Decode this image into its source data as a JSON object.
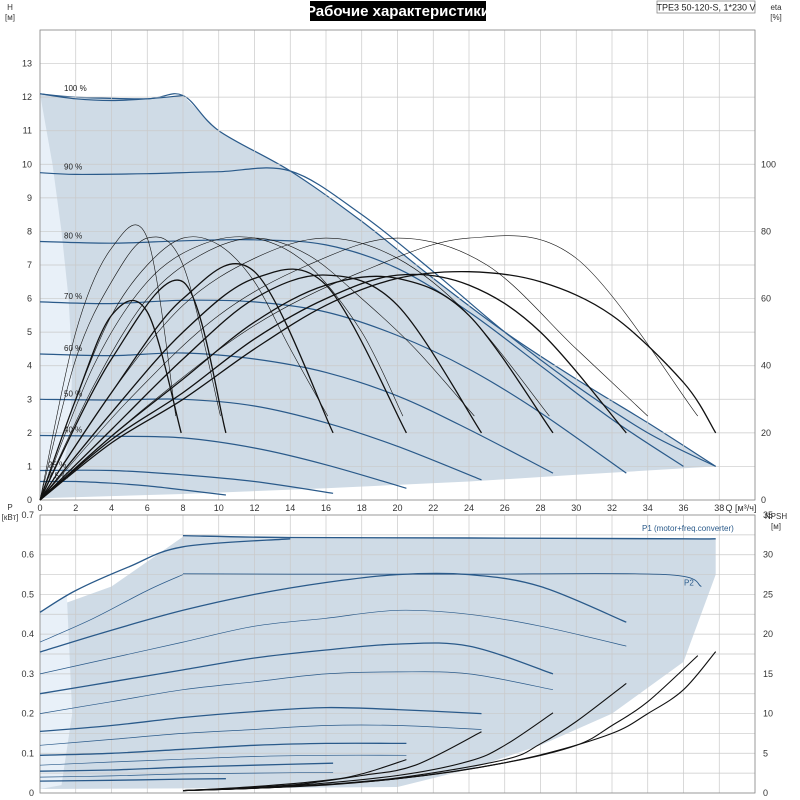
{
  "chart_data": [
    {
      "type": "line",
      "title": "Рабочие характеристики",
      "model": "TPE3 50-120-S, 1*230 V",
      "xlabel": "Q [м³/ч]",
      "ylabel": "H\n[м]",
      "y2label": "eta\n[%]",
      "xlim": [
        0,
        40
      ],
      "ylim": [
        0,
        14
      ],
      "y2lim": [
        0,
        140
      ],
      "x_ticks": [
        0,
        2,
        4,
        6,
        8,
        10,
        12,
        14,
        16,
        18,
        20,
        22,
        24,
        26,
        28,
        30,
        32,
        34,
        36,
        38
      ],
      "y_ticks": [
        0,
        1,
        2,
        3,
        4,
        5,
        6,
        7,
        8,
        9,
        10,
        11,
        12,
        13
      ],
      "y2_ticks": [
        0,
        20,
        40,
        60,
        80,
        100
      ],
      "grid": true,
      "operating_area_lower": [
        [
          0,
          0.05
        ],
        [
          8,
          0.18
        ],
        [
          16,
          0.35
        ],
        [
          24,
          0.55
        ],
        [
          30,
          0.75
        ],
        [
          37.8,
          1.0
        ]
      ],
      "operating_area_upper": [
        [
          0,
          12.1
        ],
        [
          2,
          12.0
        ],
        [
          6,
          11.95
        ],
        [
          8,
          12.05
        ],
        [
          10,
          11.0
        ],
        [
          14,
          9.8
        ],
        [
          18,
          8.3
        ],
        [
          22,
          6.6
        ],
        [
          26,
          5.0
        ],
        [
          30,
          3.6
        ],
        [
          34,
          2.3
        ],
        [
          37.8,
          1.0
        ]
      ],
      "min_limit_curve": [
        [
          0,
          12.1
        ],
        [
          0.7,
          10.0
        ],
        [
          1.2,
          8.0
        ],
        [
          1.6,
          6.0
        ],
        [
          1.8,
          4.0
        ],
        [
          1.7,
          2.0
        ],
        [
          1.3,
          1.0
        ],
        [
          0.8,
          0.4
        ],
        [
          0,
          0.05
        ]
      ],
      "series": [
        {
          "name": "100 %",
          "x": [
            0,
            2,
            4,
            6,
            8
          ],
          "y": [
            12.1,
            11.95,
            11.9,
            11.95,
            12.05
          ]
        },
        {
          "name": "90 %",
          "x": [
            0,
            2,
            6,
            10,
            14,
            18,
            22,
            26,
            30,
            34,
            37.8
          ],
          "y": [
            9.75,
            9.7,
            9.72,
            9.78,
            9.8,
            8.5,
            6.8,
            5.0,
            3.4,
            2.0,
            1.0
          ]
        },
        {
          "name": "80 %",
          "x": [
            0,
            4,
            8,
            12,
            16,
            20,
            24,
            28,
            32,
            36
          ],
          "y": [
            7.7,
            7.65,
            7.72,
            7.75,
            7.6,
            6.9,
            5.6,
            4.0,
            2.4,
            1.0
          ]
        },
        {
          "name": "70 %",
          "x": [
            0,
            4,
            8,
            12,
            16,
            20,
            24,
            28,
            32.8
          ],
          "y": [
            5.9,
            5.85,
            5.95,
            5.9,
            5.6,
            4.9,
            3.9,
            2.6,
            0.8
          ]
        },
        {
          "name": "60 %",
          "x": [
            0,
            4,
            8,
            12,
            16,
            20,
            24,
            28.7
          ],
          "y": [
            4.35,
            4.3,
            4.38,
            4.2,
            3.8,
            3.1,
            2.1,
            0.8
          ]
        },
        {
          "name": "50 %",
          "x": [
            0,
            4,
            8,
            12,
            16,
            20,
            24.7
          ],
          "y": [
            3.0,
            2.98,
            3.0,
            2.8,
            2.3,
            1.6,
            0.6
          ]
        },
        {
          "name": "40 %",
          "x": [
            0,
            4,
            8,
            12,
            16,
            20.5
          ],
          "y": [
            1.92,
            1.9,
            1.85,
            1.55,
            1.05,
            0.35
          ]
        },
        {
          "name": "25 %",
          "x": [
            0,
            4,
            8,
            12,
            16.4
          ],
          "y": [
            0.88,
            0.88,
            0.75,
            0.55,
            0.2
          ]
        },
        {
          "name": "7.5 %",
          "x": [
            0,
            2,
            4,
            6,
            8,
            10.4
          ],
          "y": [
            0.55,
            0.55,
            0.5,
            0.42,
            0.3,
            0.15
          ]
        }
      ],
      "efficiency_curves": [
        {
          "x": [
            0,
            4,
            8,
            12,
            16,
            20,
            24,
            28,
            32,
            36,
            37.8
          ],
          "y": [
            0,
            17,
            30,
            45,
            58,
            66,
            68,
            65,
            55,
            35,
            20
          ]
        },
        {
          "x": [
            0,
            4,
            8,
            12,
            16,
            20,
            24,
            28,
            32.8
          ],
          "y": [
            0,
            18,
            32,
            48,
            60,
            67,
            64,
            50,
            20
          ]
        },
        {
          "x": [
            0,
            4,
            8,
            12,
            16,
            20,
            24,
            28.7
          ],
          "y": [
            0,
            19,
            36,
            53,
            64,
            66,
            55,
            20
          ]
        },
        {
          "x": [
            0,
            4,
            8,
            12,
            16,
            20,
            24.7
          ],
          "y": [
            0,
            21,
            42,
            60,
            67,
            58,
            20
          ]
        },
        {
          "x": [
            0,
            4,
            8,
            12,
            16,
            20.5
          ],
          "y": [
            0,
            26,
            50,
            66,
            64,
            20
          ]
        },
        {
          "x": [
            0,
            4,
            8,
            12,
            16.4
          ],
          "y": [
            0,
            32,
            60,
            68,
            20
          ]
        },
        {
          "x": [
            0,
            4,
            8,
            10.4
          ],
          "y": [
            0,
            42,
            65,
            20
          ]
        },
        {
          "x": [
            0,
            2,
            4,
            6,
            7.9
          ],
          "y": [
            0,
            30,
            55,
            56,
            20
          ]
        }
      ],
      "efficiency_thin": [
        {
          "x": [
            0,
            6,
            12,
            18,
            24,
            30,
            36.8
          ],
          "y": [
            0,
            28,
            52,
            68,
            78,
            72,
            25
          ]
        },
        {
          "x": [
            0,
            5,
            10,
            15,
            20,
            25,
            30,
            34
          ],
          "y": [
            0,
            30,
            55,
            70,
            78,
            70,
            45,
            25
          ]
        },
        {
          "x": [
            0,
            4,
            8,
            12,
            16,
            20,
            24,
            28.5
          ],
          "y": [
            0,
            32,
            58,
            72,
            78,
            72,
            55,
            25
          ]
        },
        {
          "x": [
            0,
            3,
            6,
            9,
            12,
            15,
            18,
            21,
            24.3
          ],
          "y": [
            0,
            34,
            60,
            73,
            78,
            73,
            60,
            45,
            25
          ]
        },
        {
          "x": [
            0,
            3,
            6,
            9,
            12,
            15,
            18,
            20.3
          ],
          "y": [
            0,
            40,
            65,
            76,
            78,
            70,
            50,
            25
          ]
        },
        {
          "x": [
            0,
            2,
            4,
            6,
            8,
            10,
            12,
            14,
            16.1
          ],
          "y": [
            0,
            30,
            55,
            70,
            78,
            76,
            65,
            45,
            25
          ]
        },
        {
          "x": [
            0,
            2,
            4,
            6,
            8,
            10.1
          ],
          "y": [
            0,
            42,
            65,
            78,
            70,
            25
          ]
        },
        {
          "x": [
            0,
            2,
            4,
            6,
            7.6
          ],
          "y": [
            0,
            50,
            75,
            78,
            25
          ]
        }
      ]
    },
    {
      "type": "line",
      "xlabel": "Q [м³/ч]",
      "ylabel": "P\n[кВт]",
      "y2label": "NPSH\n[м]",
      "xlim": [
        0,
        40
      ],
      "ylim": [
        0,
        0.7
      ],
      "y2lim": [
        0,
        35
      ],
      "y_ticks": [
        0,
        0.1,
        0.2,
        0.3,
        0.4,
        0.5,
        0.6,
        0.7
      ],
      "y2_ticks": [
        0,
        5,
        10,
        15,
        20,
        25,
        30,
        35
      ],
      "grid": true,
      "area_upper": [
        [
          0,
          0.455
        ],
        [
          4,
          0.52
        ],
        [
          8,
          0.645
        ],
        [
          14,
          0.64
        ],
        [
          24,
          0.64
        ],
        [
          30,
          0.64
        ],
        [
          36,
          0.64
        ],
        [
          37.8,
          0.64
        ]
      ],
      "area_lower": [
        [
          0,
          0.01
        ],
        [
          10,
          0.012
        ],
        [
          20,
          0.015
        ],
        [
          24,
          0.06
        ],
        [
          28,
          0.12
        ],
        [
          32,
          0.2
        ],
        [
          36,
          0.33
        ],
        [
          37.8,
          0.55
        ]
      ],
      "series": [
        {
          "name": "P1 (motor+freq.converter)",
          "x": [
            8,
            14,
            24,
            36,
            37.8
          ],
          "y": [
            0.648,
            0.643,
            0.642,
            0.64,
            0.64
          ]
        },
        {
          "name": "P2",
          "x": [
            8,
            14,
            24,
            35,
            37
          ],
          "y": [
            0.552,
            0.551,
            0.551,
            0.55,
            0.52
          ]
        }
      ],
      "p1_speed_curves": [
        {
          "x": [
            0,
            2,
            5,
            8,
            14
          ],
          "y": [
            0.455,
            0.51,
            0.57,
            0.62,
            0.64
          ]
        },
        {
          "x": [
            0,
            4,
            8,
            12,
            16,
            20,
            24,
            28,
            32.8
          ],
          "y": [
            0.355,
            0.41,
            0.46,
            0.5,
            0.53,
            0.55,
            0.55,
            0.52,
            0.43
          ]
        },
        {
          "x": [
            0,
            4,
            8,
            12,
            16,
            20,
            24,
            28.7
          ],
          "y": [
            0.25,
            0.28,
            0.31,
            0.34,
            0.36,
            0.375,
            0.37,
            0.3
          ]
        },
        {
          "x": [
            0,
            4,
            8,
            12,
            16,
            20,
            24.7
          ],
          "y": [
            0.155,
            0.17,
            0.19,
            0.205,
            0.215,
            0.21,
            0.2
          ]
        },
        {
          "x": [
            0,
            4,
            8,
            12,
            16,
            20.5
          ],
          "y": [
            0.095,
            0.1,
            0.11,
            0.12,
            0.125,
            0.125
          ]
        },
        {
          "x": [
            0,
            4,
            8,
            12,
            16.4
          ],
          "y": [
            0.055,
            0.058,
            0.065,
            0.07,
            0.075
          ]
        },
        {
          "x": [
            0,
            4,
            8,
            10.4
          ],
          "y": [
            0.03,
            0.032,
            0.035,
            0.036
          ]
        }
      ],
      "p2_speed_curves": [
        {
          "x": [
            0,
            3,
            6,
            8
          ],
          "y": [
            0.38,
            0.44,
            0.51,
            0.55
          ]
        },
        {
          "x": [
            0,
            4,
            8,
            12,
            16,
            20,
            24,
            28,
            32.8
          ],
          "y": [
            0.3,
            0.34,
            0.38,
            0.42,
            0.44,
            0.46,
            0.45,
            0.42,
            0.37
          ]
        },
        {
          "x": [
            0,
            4,
            8,
            12,
            16,
            20,
            24,
            28.7
          ],
          "y": [
            0.2,
            0.23,
            0.26,
            0.28,
            0.3,
            0.305,
            0.3,
            0.26
          ]
        },
        {
          "x": [
            0,
            4,
            8,
            12,
            16,
            20,
            24.7
          ],
          "y": [
            0.12,
            0.135,
            0.15,
            0.16,
            0.17,
            0.17,
            0.16
          ]
        },
        {
          "x": [
            0,
            4,
            8,
            12,
            16,
            20.5
          ],
          "y": [
            0.07,
            0.078,
            0.085,
            0.092,
            0.095,
            0.095
          ]
        },
        {
          "x": [
            0,
            4,
            8,
            12,
            16.4
          ],
          "y": [
            0.04,
            0.043,
            0.048,
            0.05,
            0.052
          ]
        }
      ],
      "npsh_curves": [
        {
          "x": [
            8,
            12,
            16,
            20,
            24,
            28,
            32,
            34,
            36,
            37.8
          ],
          "y": [
            0.3,
            0.6,
            1.0,
            1.8,
            3.0,
            4.8,
            7.5,
            10,
            13,
            17.8
          ]
        },
        {
          "x": [
            8,
            14,
            20,
            26,
            30,
            32,
            34,
            36.8
          ],
          "y": [
            0.3,
            0.8,
            1.8,
            3.8,
            6.0,
            8.5,
            11.5,
            17.3
          ]
        },
        {
          "x": [
            8,
            14,
            20,
            26,
            28,
            30,
            32.8
          ],
          "y": [
            0.3,
            0.8,
            1.9,
            4.2,
            6.2,
            9.0,
            13.8
          ]
        },
        {
          "x": [
            8,
            14,
            20,
            24,
            26,
            28.7
          ],
          "y": [
            0.3,
            0.9,
            2.2,
            4.0,
            6.0,
            10.1
          ]
        },
        {
          "x": [
            8,
            14,
            18,
            21,
            24.7
          ],
          "y": [
            0.3,
            1.0,
            2.2,
            3.5,
            7.7
          ]
        },
        {
          "x": [
            8,
            12,
            16,
            18,
            20.5
          ],
          "y": [
            0.3,
            0.8,
            1.6,
            2.4,
            4.2
          ]
        },
        {
          "x": [
            8,
            12,
            14,
            16.4
          ],
          "y": [
            0.3,
            0.6,
            0.9,
            1.7
          ]
        }
      ]
    }
  ],
  "pct_labels": [
    "100 %",
    "90 %",
    "80 %",
    "70 %",
    "60 %",
    "50 %",
    "40 %",
    "25 %",
    "7.5 %"
  ],
  "colors": {
    "area": "#cfdbe6",
    "area_light": "#e8f0f8",
    "blue_curve": "#2a5a8a",
    "black_curve": "#111111",
    "grid": "#c9c9c9"
  }
}
